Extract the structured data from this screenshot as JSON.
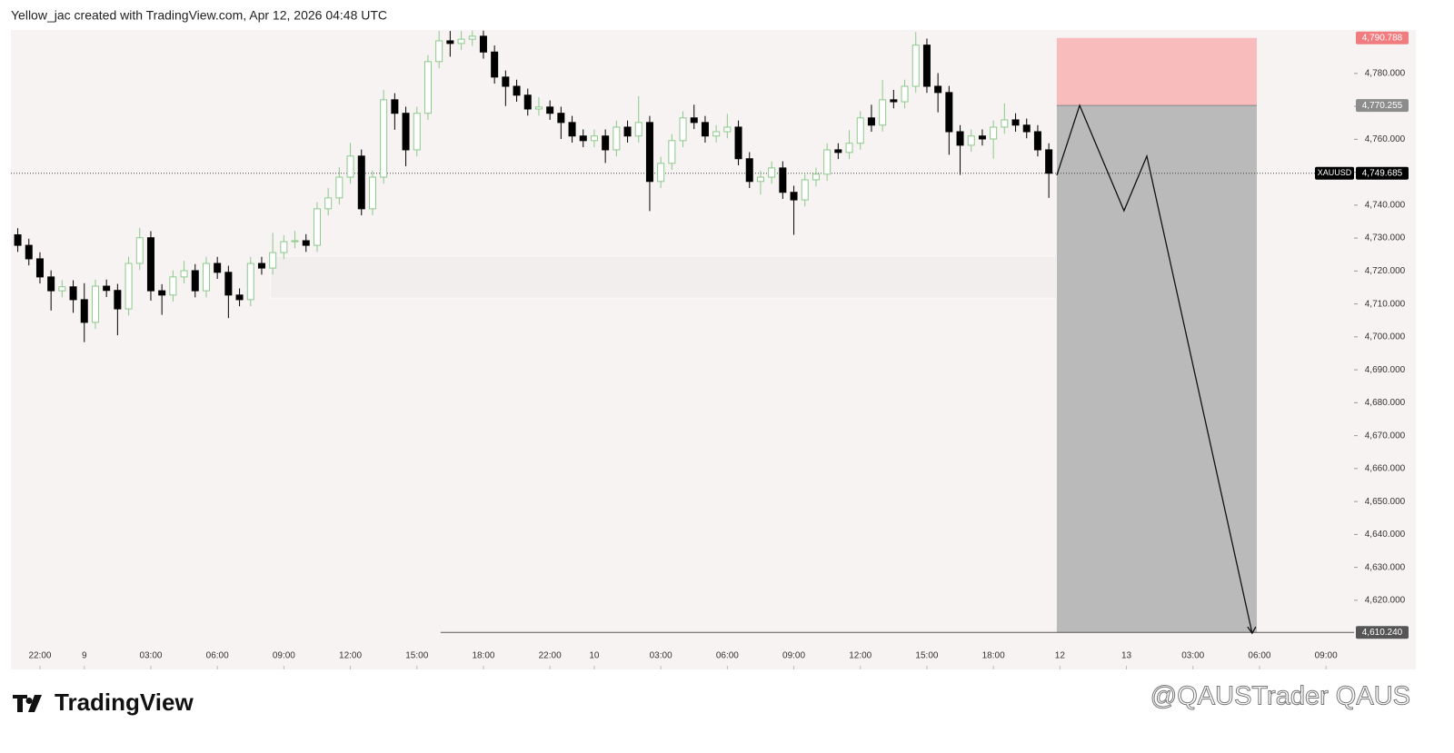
{
  "chart_data": {
    "type": "candlestick",
    "title": "Yellow_jac created with TradingView.com, Apr 12, 2026 04:48 UTC",
    "symbol": "XAUUSD",
    "up_color": "#8cc98c",
    "down_color": "#000000",
    "x": [
      -1,
      -0.5,
      0,
      0.5,
      1,
      1.5,
      2,
      2.5,
      3,
      3.5,
      4,
      4.5,
      5,
      5.5,
      6,
      6.5,
      7,
      7.5,
      8,
      8.5,
      9,
      9.5,
      10,
      10.5,
      11,
      11.5,
      12,
      12.5,
      13,
      13.5,
      14,
      14.5,
      15,
      15.5,
      16,
      16.5,
      17,
      17.5,
      18,
      18.5,
      19,
      19.5,
      20,
      20.5,
      21,
      21.5,
      22,
      22.5,
      23,
      23.5,
      24,
      24.5,
      25,
      25.5,
      26,
      26.5,
      27,
      27.5,
      28,
      28.5,
      29,
      29.5,
      30,
      30.5,
      31,
      31.5,
      32,
      32.5,
      33,
      33.5,
      34,
      34.5,
      35,
      35.5,
      36,
      36.5,
      37,
      37.5,
      38,
      38.5,
      39,
      39.5,
      40,
      40.5,
      41,
      41.5,
      42,
      42.5,
      43,
      43.5,
      44,
      44.5,
      45,
      45.5
    ],
    "open": [
      4731.0,
      4727.8,
      4723.7,
      4718.2,
      4714.0,
      4715.2,
      4711.3,
      4704.4,
      4715.4,
      4714.1,
      4708.5,
      4722.3,
      4730.1,
      4714.0,
      4712.7,
      4718.2,
      4720.1,
      4714.0,
      4722.3,
      4719.6,
      4712.7,
      4711.3,
      4722.3,
      4720.9,
      4725.6,
      4728.9,
      4729.2,
      4727.8,
      4738.9,
      4742.2,
      4748.5,
      4754.9,
      4738.9,
      4748.5,
      4772.0,
      4767.9,
      4756.8,
      4767.9,
      4783.6,
      4789.9,
      4789.1,
      4790.4,
      4791.3,
      4786.5,
      4778.9,
      4776.1,
      4773.4,
      4769.2,
      4769.8,
      4767.9,
      4765.1,
      4761.0,
      4759.6,
      4761.0,
      4756.8,
      4763.7,
      4761.0,
      4765.1,
      4747.2,
      4752.7,
      4759.6,
      4766.5,
      4765.1,
      4761.0,
      4762.3,
      4763.7,
      4754.1,
      4747.2,
      4748.5,
      4751.3,
      4743.9,
      4741.6,
      4747.7,
      4749.4,
      4756.8,
      4756.0,
      4758.8,
      4766.5,
      4764.3,
      4772.0,
      4771.4,
      4776.1,
      4788.6,
      4776.1,
      4774.2,
      4762.3,
      4758.2,
      4761.0,
      4760.1,
      4763.7,
      4765.9,
      4764.3,
      4762.3,
      4756.8
    ],
    "high": [
      4733.0,
      4729.8,
      4725.7,
      4720.2,
      4717.2,
      4717.2,
      4716.3,
      4717.4,
      4717.4,
      4716.1,
      4724.3,
      4733.1,
      4732.1,
      4716.0,
      4720.2,
      4723.1,
      4722.1,
      4724.3,
      4724.3,
      4721.6,
      4714.7,
      4724.3,
      4724.3,
      4731.6,
      4730.9,
      4732.2,
      4731.2,
      4740.9,
      4745.2,
      4751.5,
      4758.9,
      4756.9,
      4750.5,
      4775.0,
      4774.0,
      4769.9,
      4769.9,
      4785.6,
      4792.9,
      4792.9,
      4792.9,
      4793.0,
      4793.0,
      4788.5,
      4780.9,
      4778.1,
      4775.4,
      4772.8,
      4771.8,
      4769.9,
      4767.1,
      4763.0,
      4763.0,
      4763.0,
      4765.7,
      4765.7,
      4773.1,
      4767.1,
      4754.7,
      4761.6,
      4768.5,
      4770.5,
      4767.1,
      4764.3,
      4767.7,
      4765.7,
      4756.1,
      4750.5,
      4753.3,
      4753.3,
      4745.9,
      4749.7,
      4751.4,
      4758.8,
      4758.8,
      4762.8,
      4768.5,
      4770.5,
      4778.0,
      4775.0,
      4778.1,
      4792.6,
      4790.6,
      4780.1,
      4776.2,
      4764.3,
      4763.0,
      4763.0,
      4765.7,
      4770.9,
      4767.9,
      4766.3,
      4764.3,
      4758.8
    ],
    "low": [
      4725.8,
      4721.7,
      4716.2,
      4708.0,
      4712.0,
      4707.3,
      4698.4,
      4702.4,
      4712.1,
      4700.5,
      4706.5,
      4720.3,
      4711.0,
      4706.7,
      4710.7,
      4716.2,
      4712.0,
      4712.0,
      4717.6,
      4705.7,
      4709.3,
      4709.3,
      4718.9,
      4718.9,
      4723.6,
      4726.9,
      4725.8,
      4725.8,
      4736.9,
      4740.2,
      4746.5,
      4736.9,
      4736.9,
      4746.5,
      4762.9,
      4751.8,
      4754.8,
      4765.9,
      4781.6,
      4785.1,
      4787.1,
      4788.4,
      4784.5,
      4776.9,
      4770.1,
      4771.4,
      4767.2,
      4767.2,
      4765.9,
      4760.1,
      4759.0,
      4757.6,
      4757.6,
      4752.8,
      4754.8,
      4759.0,
      4759.0,
      4738.2,
      4745.2,
      4750.7,
      4757.6,
      4763.1,
      4759.0,
      4759.0,
      4760.3,
      4752.1,
      4745.2,
      4743.2,
      4746.5,
      4741.9,
      4731.0,
      4739.6,
      4745.7,
      4747.4,
      4754.0,
      4754.0,
      4756.8,
      4762.3,
      4762.3,
      4769.4,
      4769.4,
      4774.1,
      4774.1,
      4768.2,
      4755.3,
      4749.2,
      4756.2,
      4758.1,
      4754.1,
      4761.7,
      4762.3,
      4760.3,
      4754.8,
      4742.2
    ],
    "close": [
      4727.8,
      4723.7,
      4718.2,
      4714.0,
      4715.2,
      4711.3,
      4704.4,
      4715.4,
      4714.1,
      4708.5,
      4722.3,
      4730.1,
      4714.0,
      4712.7,
      4718.2,
      4720.1,
      4714.0,
      4722.3,
      4719.6,
      4712.7,
      4711.3,
      4722.3,
      4720.9,
      4725.6,
      4728.9,
      4729.2,
      4727.8,
      4738.9,
      4742.2,
      4748.5,
      4754.9,
      4738.9,
      4748.5,
      4772.0,
      4767.9,
      4756.8,
      4767.9,
      4783.6,
      4789.9,
      4789.1,
      4790.4,
      4791.3,
      4786.5,
      4778.9,
      4776.1,
      4773.4,
      4769.2,
      4769.8,
      4767.9,
      4765.1,
      4761.0,
      4759.6,
      4761.0,
      4756.8,
      4763.7,
      4761.0,
      4765.1,
      4747.2,
      4752.7,
      4759.6,
      4766.5,
      4765.1,
      4761.0,
      4762.3,
      4763.7,
      4754.1,
      4747.2,
      4748.5,
      4751.3,
      4743.9,
      4741.6,
      4747.7,
      4749.4,
      4756.8,
      4756.0,
      4758.8,
      4766.5,
      4764.3,
      4772.0,
      4771.4,
      4776.1,
      4788.6,
      4776.1,
      4774.2,
      4762.3,
      4758.2,
      4761.0,
      4760.1,
      4763.7,
      4765.9,
      4764.3,
      4762.3,
      4756.8,
      4749.7
    ],
    "xlim": [
      -1.31,
      59.06
    ],
    "ylim": [
      4599.0,
      4793.2
    ],
    "xticks": [
      {
        "value": 0,
        "label": "22:00"
      },
      {
        "value": 2,
        "label": "9"
      },
      {
        "value": 5,
        "label": "03:00"
      },
      {
        "value": 8,
        "label": "06:00"
      },
      {
        "value": 11,
        "label": "09:00"
      },
      {
        "value": 14,
        "label": "12:00"
      },
      {
        "value": 17,
        "label": "15:00"
      },
      {
        "value": 20,
        "label": "18:00"
      },
      {
        "value": 23,
        "label": "22:00"
      },
      {
        "value": 25,
        "label": "10"
      },
      {
        "value": 28,
        "label": "03:00"
      },
      {
        "value": 31,
        "label": "06:00"
      },
      {
        "value": 34,
        "label": "09:00"
      },
      {
        "value": 37,
        "label": "12:00"
      },
      {
        "value": 40,
        "label": "15:00"
      },
      {
        "value": 43,
        "label": "18:00"
      },
      {
        "value": 46,
        "label": "12"
      },
      {
        "value": 49,
        "label": "13"
      },
      {
        "value": 52,
        "label": "03:00"
      },
      {
        "value": 55,
        "label": "06:00"
      },
      {
        "value": 58,
        "label": "09:00"
      }
    ],
    "yticks": [
      {
        "value": 4620,
        "label": "4,620.000"
      },
      {
        "value": 4630,
        "label": "4,630.000"
      },
      {
        "value": 4640,
        "label": "4,640.000"
      },
      {
        "value": 4650,
        "label": "4,650.000"
      },
      {
        "value": 4660,
        "label": "4,660.000"
      },
      {
        "value": 4670,
        "label": "4,670.000"
      },
      {
        "value": 4680,
        "label": "4,680.000"
      },
      {
        "value": 4690,
        "label": "4,690.000"
      },
      {
        "value": 4700,
        "label": "4,700.000"
      },
      {
        "value": 4710,
        "label": "4,710.000"
      },
      {
        "value": 4720,
        "label": "4,720.000"
      },
      {
        "value": 4730,
        "label": "4,730.000"
      },
      {
        "value": 4740,
        "label": "4,740.000"
      },
      {
        "value": 4750,
        "label": "4,750.000"
      },
      {
        "value": 4760,
        "label": "4,760.000"
      },
      {
        "value": 4770,
        "label": "4,770.000"
      },
      {
        "value": 4780,
        "label": "4,780.000"
      }
    ],
    "last_price": {
      "value": 4749.685,
      "label": "4,749.685"
    },
    "position": {
      "x": [
        45.86,
        54.88
      ],
      "line_start": 18.07,
      "stop": {
        "value": 4790.788,
        "label": "4,790.788"
      },
      "entry": {
        "value": 4770.255,
        "label": "4,770.255"
      },
      "target": {
        "value": 4610.24,
        "label": "4,610.240"
      },
      "stop_color": "#f8bcbd",
      "target_color": "#bababa"
    },
    "zone": {
      "x": [
        10.4,
        45.86
      ],
      "y": [
        4711.8,
        4724.5
      ]
    },
    "projection": {
      "x": [
        45.86,
        46.89,
        48.89,
        49.92,
        54.67
      ],
      "y": [
        4749.1,
        4770.3,
        4738.3,
        4754.9,
        4610.0
      ]
    }
  },
  "footer": {
    "brand": "TradingView",
    "watermark": "@QAUSTrader QAUS"
  }
}
